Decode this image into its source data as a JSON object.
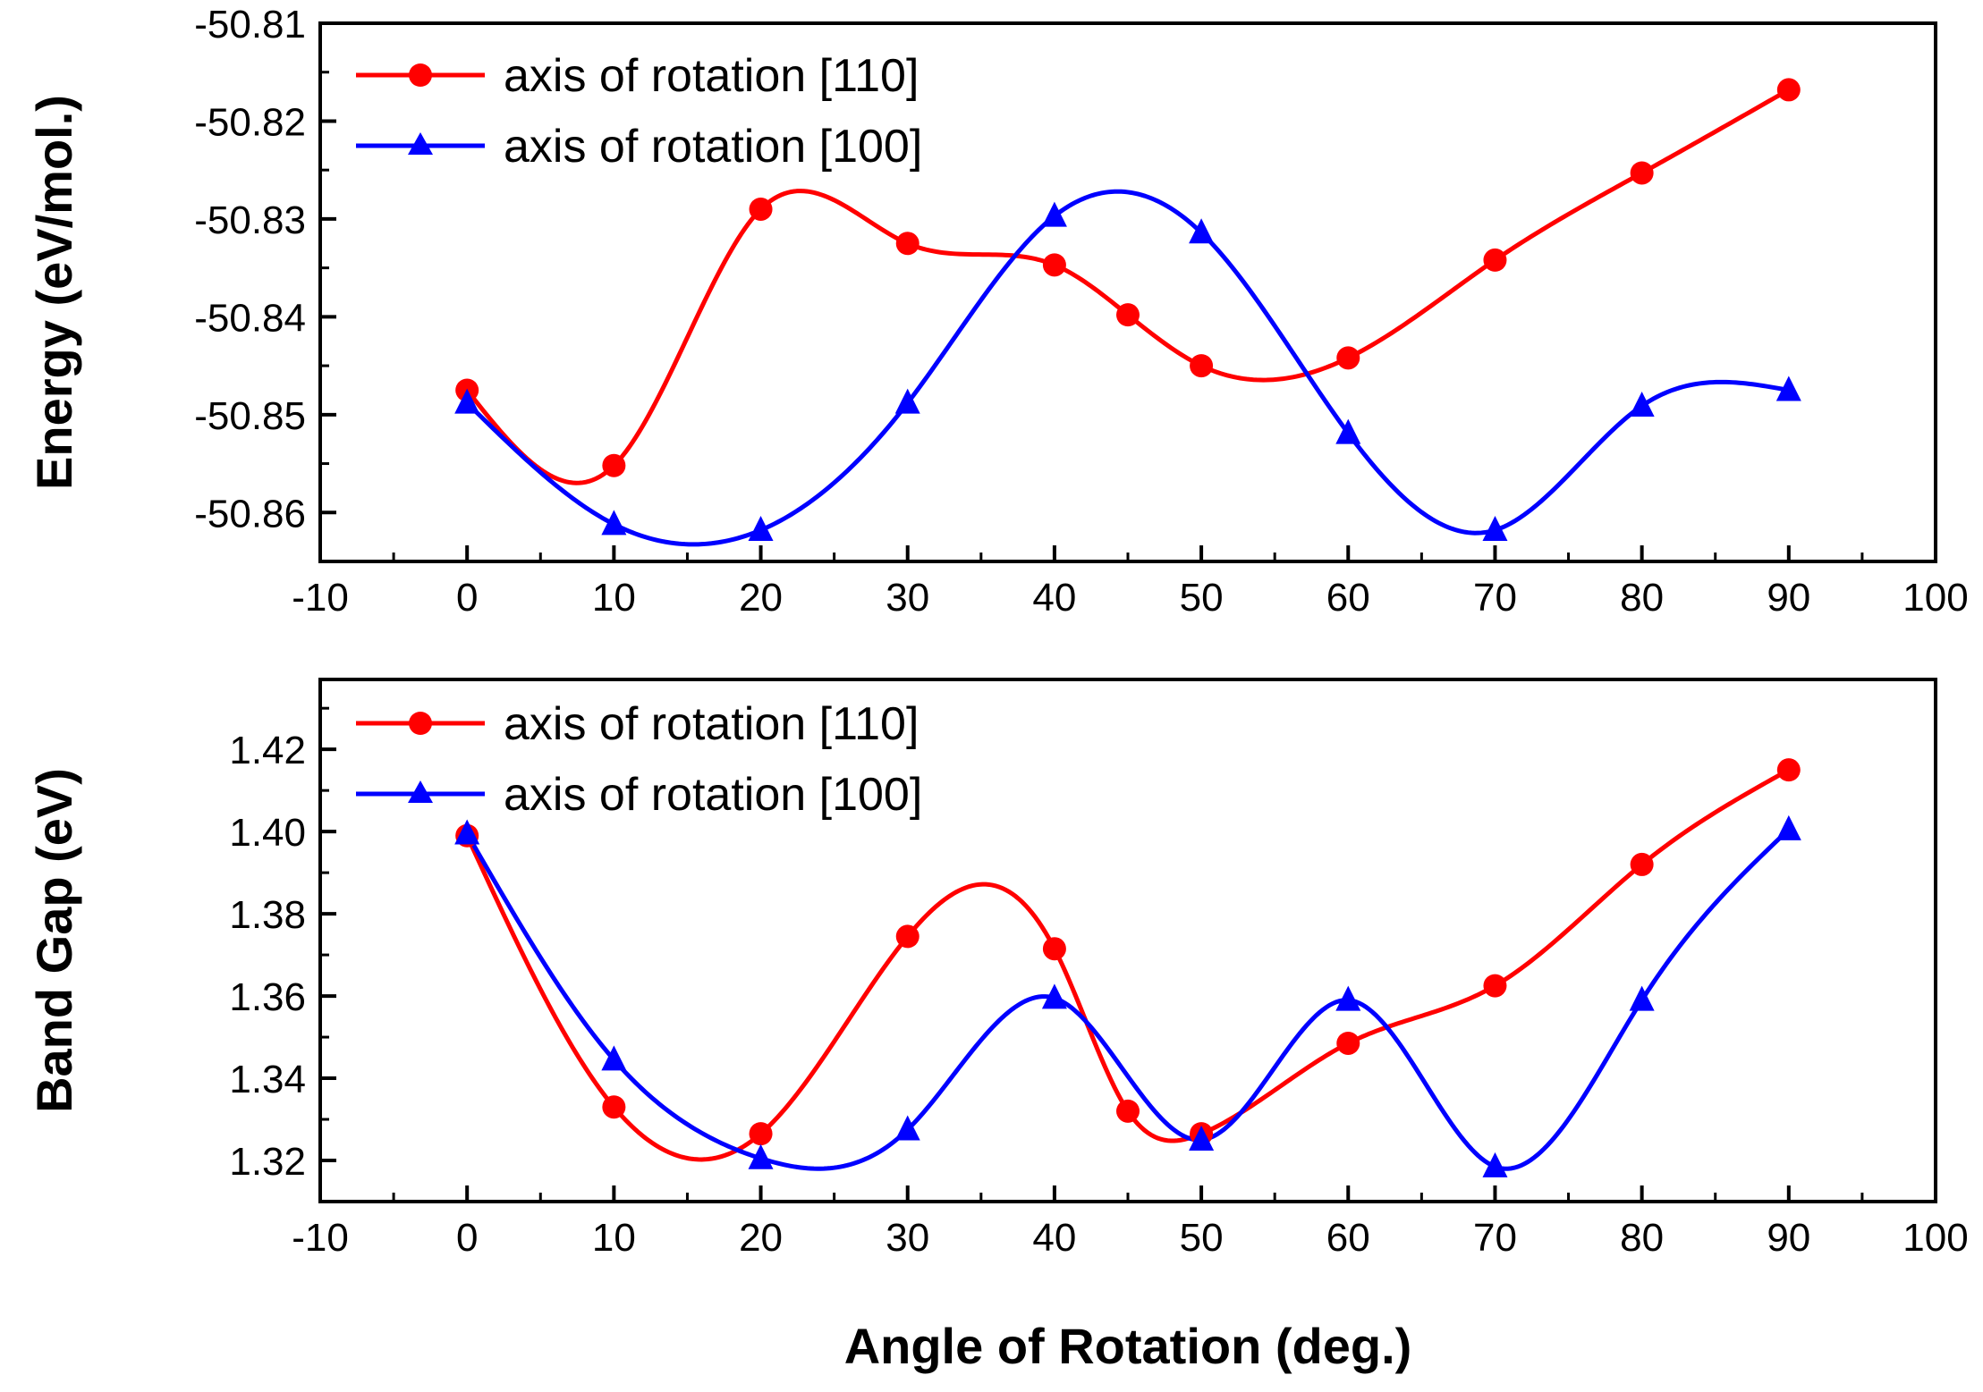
{
  "chart_data": [
    {
      "type": "line",
      "title": "",
      "xlabel": "",
      "ylabel": "Energy (eV/mol.)",
      "xlim": [
        -10,
        100
      ],
      "ylim": [
        -50.865,
        -50.81
      ],
      "xticks": [
        -10,
        0,
        10,
        20,
        30,
        40,
        50,
        60,
        70,
        80,
        90,
        100
      ],
      "xtick_labels": [
        "-10",
        "0",
        "10",
        "20",
        "30",
        "40",
        "50",
        "60",
        "70",
        "80",
        "90",
        "100"
      ],
      "yticks": [
        -50.86,
        -50.85,
        -50.84,
        -50.83,
        -50.82,
        -50.81
      ],
      "ytick_labels": [
        "-50.86",
        "-50.85",
        "-50.84",
        "-50.83",
        "-50.82",
        "-50.81"
      ],
      "legend_position": "top-left",
      "series": [
        {
          "name": "axis of rotation [110]",
          "color": "#ff0000",
          "marker": "circle",
          "x": [
            0,
            10,
            20,
            30,
            40,
            45,
            50,
            60,
            70,
            80,
            90
          ],
          "y": [
            -50.8475,
            -50.8552,
            -50.829,
            -50.8325,
            -50.8347,
            -50.8398,
            -50.845,
            -50.8442,
            -50.8342,
            -50.8253,
            -50.8168
          ]
        },
        {
          "name": "axis of rotation [100]",
          "color": "#0000ff",
          "marker": "triangle",
          "x": [
            0,
            10,
            20,
            30,
            40,
            50,
            60,
            70,
            80,
            90
          ],
          "y": [
            -50.8488,
            -50.8612,
            -50.8618,
            -50.8488,
            -50.8297,
            -50.8314,
            -50.8519,
            -50.8618,
            -50.8491,
            -50.8475
          ]
        }
      ]
    },
    {
      "type": "line",
      "title": "",
      "xlabel": "Angle of Rotation (deg.)",
      "ylabel": "Band Gap (eV)",
      "xlim": [
        -10,
        100
      ],
      "ylim": [
        1.31,
        1.437
      ],
      "xticks": [
        -10,
        0,
        10,
        20,
        30,
        40,
        50,
        60,
        70,
        80,
        90,
        100
      ],
      "xtick_labels": [
        "-10",
        "0",
        "10",
        "20",
        "30",
        "40",
        "50",
        "60",
        "70",
        "80",
        "90",
        "100"
      ],
      "yticks": [
        1.32,
        1.34,
        1.36,
        1.38,
        1.4,
        1.42
      ],
      "ytick_labels": [
        "1.32",
        "1.34",
        "1.36",
        "1.38",
        "1.40",
        "1.42"
      ],
      "legend_position": "top-left",
      "series": [
        {
          "name": "axis of rotation [110]",
          "color": "#ff0000",
          "marker": "circle",
          "x": [
            0,
            10,
            20,
            30,
            40,
            45,
            50,
            60,
            70,
            80,
            90
          ],
          "y": [
            1.399,
            1.333,
            1.3265,
            1.3745,
            1.3715,
            1.332,
            1.3265,
            1.3485,
            1.3625,
            1.392,
            1.415
          ]
        },
        {
          "name": "axis of rotation [100]",
          "color": "#0000ff",
          "marker": "triangle",
          "x": [
            0,
            10,
            20,
            30,
            40,
            50,
            60,
            70,
            80,
            90
          ],
          "y": [
            1.3995,
            1.3445,
            1.3205,
            1.3275,
            1.3595,
            1.325,
            1.359,
            1.3185,
            1.359,
            1.4005
          ]
        }
      ]
    }
  ]
}
